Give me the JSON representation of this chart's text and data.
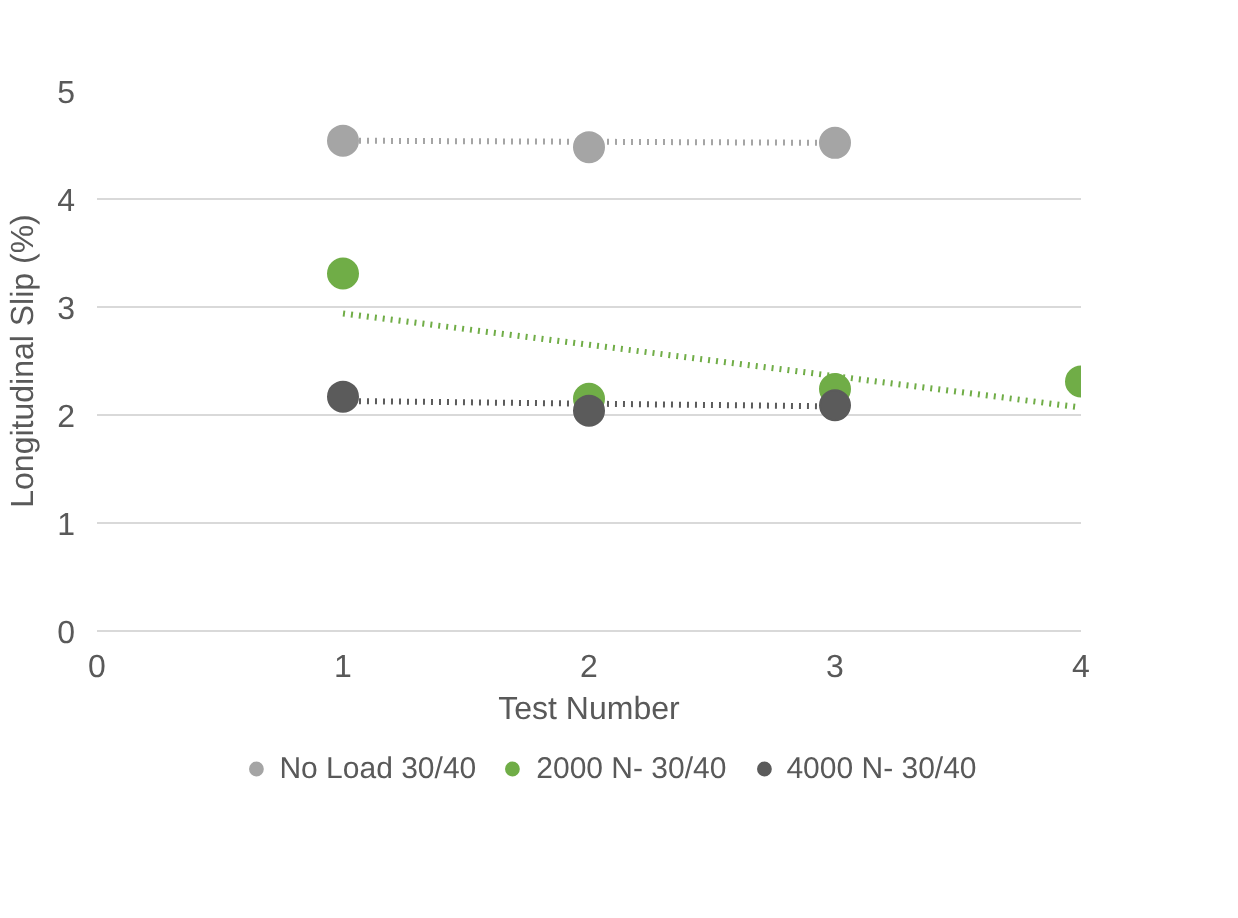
{
  "chart_data": {
    "type": "scatter",
    "xlabel": "Test Number",
    "ylabel": "Longitudinal Slip (%)",
    "xlim": [
      0,
      4
    ],
    "ylim": [
      0,
      5
    ],
    "xticks": [
      0,
      1,
      2,
      3,
      4
    ],
    "yticks": [
      0,
      1,
      2,
      3,
      4,
      5
    ],
    "grid": "y",
    "legend": "bottom",
    "marker": "circle",
    "series": [
      {
        "name": "No Load 30/40",
        "color": "#a5a5a5",
        "x": [
          1,
          2,
          3
        ],
        "values": [
          4.54,
          4.48,
          4.52
        ]
      },
      {
        "name": "2000 N- 30/40",
        "color": "#70ad47",
        "x": [
          1,
          2,
          3,
          4
        ],
        "values": [
          3.31,
          2.15,
          2.24,
          2.31
        ]
      },
      {
        "name": "4000 N- 30/40",
        "color": "#5b5b5b",
        "x": [
          1,
          2,
          3
        ],
        "values": [
          2.17,
          2.04,
          2.09
        ]
      },
      {
        "type": "line",
        "marker": "none",
        "line_style": "dotted",
        "color": "#a5a5a5",
        "x": [
          1,
          3
        ],
        "values": [
          4.54,
          4.52
        ]
      },
      {
        "type": "line",
        "marker": "none",
        "line_style": "dotted",
        "color": "#70ad47",
        "x": [
          1,
          4
        ],
        "values": [
          2.94,
          2.07
        ]
      },
      {
        "type": "line",
        "marker": "none",
        "line_style": "dotted",
        "color": "#5b5b5b",
        "x": [
          1,
          3
        ],
        "values": [
          2.13,
          2.08
        ]
      }
    ]
  }
}
